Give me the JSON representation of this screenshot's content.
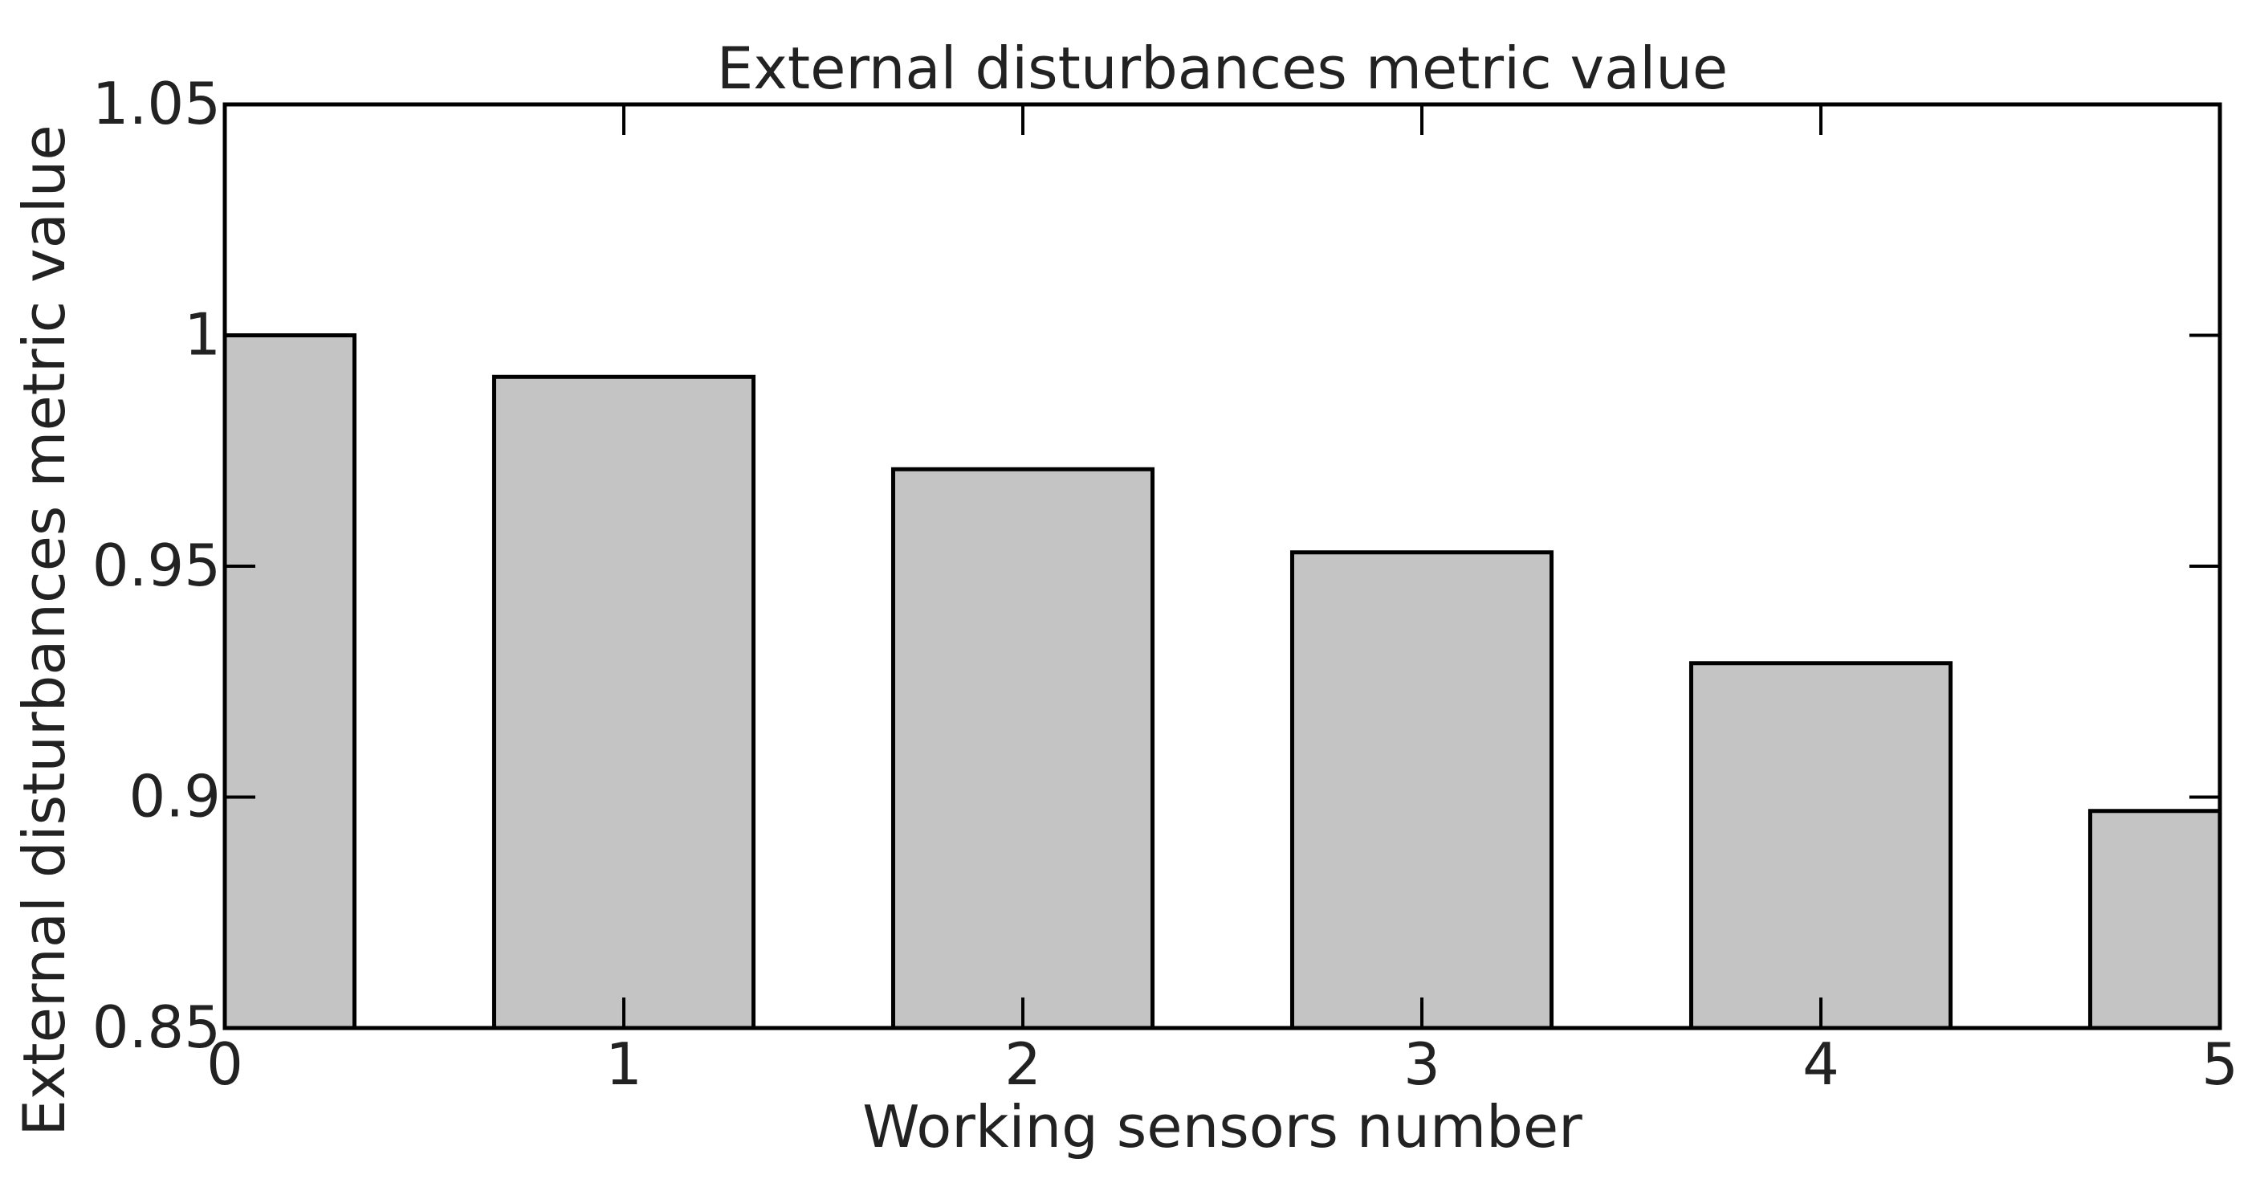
{
  "chart_data": {
    "type": "bar",
    "title": "External disturbances metric value",
    "xlabel": "Working sensors number",
    "ylabel": "External disturbances metric value",
    "categories": [
      0,
      1,
      2,
      3,
      4,
      5
    ],
    "values": [
      1.0,
      0.991,
      0.971,
      0.953,
      0.929,
      0.897
    ],
    "xlim": [
      0,
      5
    ],
    "ylim": [
      0.85,
      1.05
    ],
    "xticks": [
      "0",
      "1",
      "2",
      "3",
      "4",
      "5"
    ],
    "yticks": [
      "0.85",
      "0.9",
      "0.95",
      "1",
      "1.05"
    ],
    "ytick_values": [
      0.85,
      0.9,
      0.95,
      1.0,
      1.05
    ],
    "bar_width": 0.65,
    "bar_color": "#c4c4c4",
    "edge_color": "#000000",
    "grid": false,
    "legend": null
  }
}
